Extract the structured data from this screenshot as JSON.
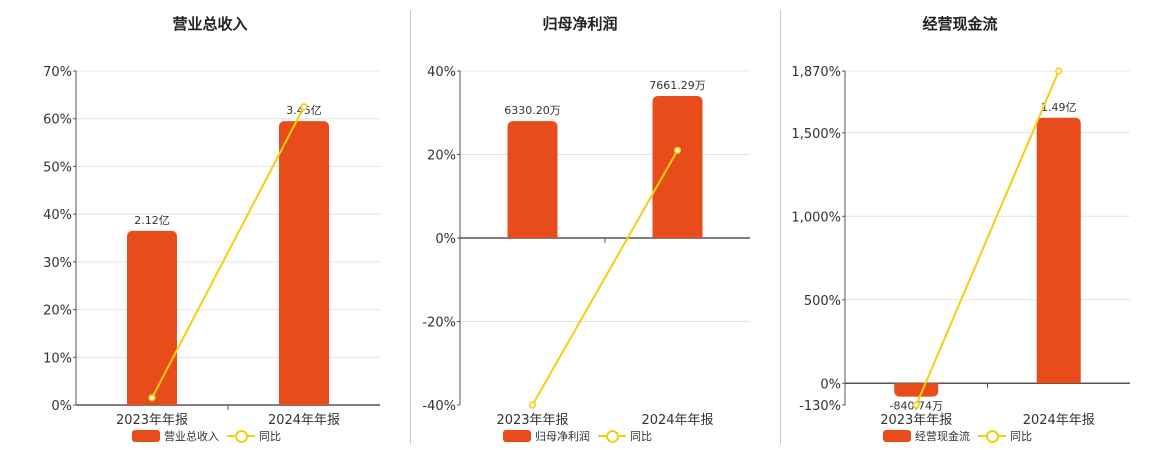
{
  "colors": {
    "bar": "#e84c1a",
    "line": "#f2d00f",
    "grid": "#e4e4e4",
    "axis": "#555555"
  },
  "chart_data": [
    {
      "type": "bar",
      "title": "营业总收入",
      "categories": [
        "2023年年报",
        "2024年年报"
      ],
      "series": [
        {
          "name": "营业总收入",
          "type": "bar",
          "value_labels": [
            "2.12亿",
            "3.45亿"
          ]
        },
        {
          "name": "同比",
          "type": "line",
          "axis": "percent",
          "values": [
            1.5,
            62.5
          ]
        }
      ],
      "y_ticks": [
        "0%",
        "10%",
        "20%",
        "30%",
        "40%",
        "50%",
        "60%",
        "70%"
      ],
      "ylim": [
        0,
        70
      ],
      "bar_values_on_axis": [
        36.5,
        59.5
      ],
      "grid": true,
      "legend_position": "bottom"
    },
    {
      "type": "bar",
      "title": "归母净利润",
      "categories": [
        "2023年年报",
        "2024年年报"
      ],
      "series": [
        {
          "name": "归母净利润",
          "type": "bar",
          "value_labels": [
            "6330.20万",
            "7661.29万"
          ]
        },
        {
          "name": "同比",
          "type": "line",
          "axis": "percent",
          "values": [
            -40,
            21
          ]
        }
      ],
      "y_ticks": [
        "-40%",
        "-20%",
        "0%",
        "20%",
        "40%"
      ],
      "ylim": [
        -40,
        40
      ],
      "bar_values_on_axis": [
        28,
        34
      ],
      "grid": true,
      "legend_position": "bottom"
    },
    {
      "type": "bar",
      "title": "经营现金流",
      "categories": [
        "2023年年报",
        "2024年年报"
      ],
      "series": [
        {
          "name": "经营现金流",
          "type": "bar",
          "value_labels": [
            "-840.74万",
            "1.49亿"
          ]
        },
        {
          "name": "同比",
          "type": "line",
          "axis": "percent",
          "values": [
            -130,
            1870
          ]
        }
      ],
      "y_ticks": [
        "-130%",
        "0%",
        "500%",
        "1,000%",
        "1,500%",
        "1,870%"
      ],
      "ylim": [
        -130,
        1870
      ],
      "bar_values_on_axis": [
        -80,
        1590
      ],
      "grid": true,
      "legend_position": "bottom"
    }
  ]
}
